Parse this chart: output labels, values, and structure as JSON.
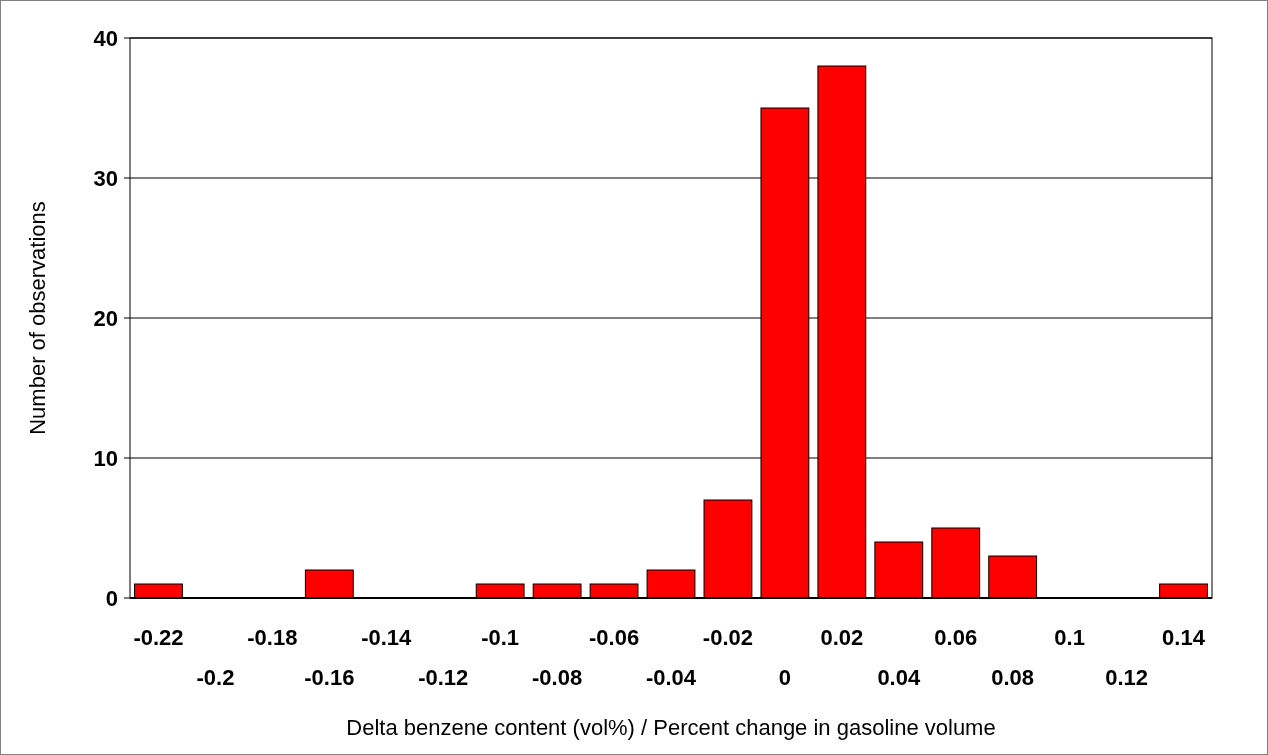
{
  "chart_data": {
    "type": "bar",
    "xlabel": "Delta benzene content (vol%) / Percent change in gasoline volume",
    "ylabel": "Number of observations",
    "categories": [
      "-0.22",
      "-0.2",
      "-0.18",
      "-0.16",
      "-0.14",
      "-0.12",
      "-0.1",
      "-0.08",
      "-0.06",
      "-0.04",
      "-0.02",
      "0",
      "0.02",
      "0.04",
      "0.06",
      "0.08",
      "0.1",
      "0.12",
      "0.14"
    ],
    "values": [
      1,
      0,
      0,
      2,
      0,
      0,
      1,
      1,
      1,
      2,
      7,
      35,
      38,
      4,
      5,
      3,
      0,
      0,
      1
    ],
    "color": "#ff0000",
    "ylim": [
      0,
      40
    ],
    "yticks": [
      0,
      10,
      20,
      30,
      40
    ],
    "grid": "y"
  }
}
